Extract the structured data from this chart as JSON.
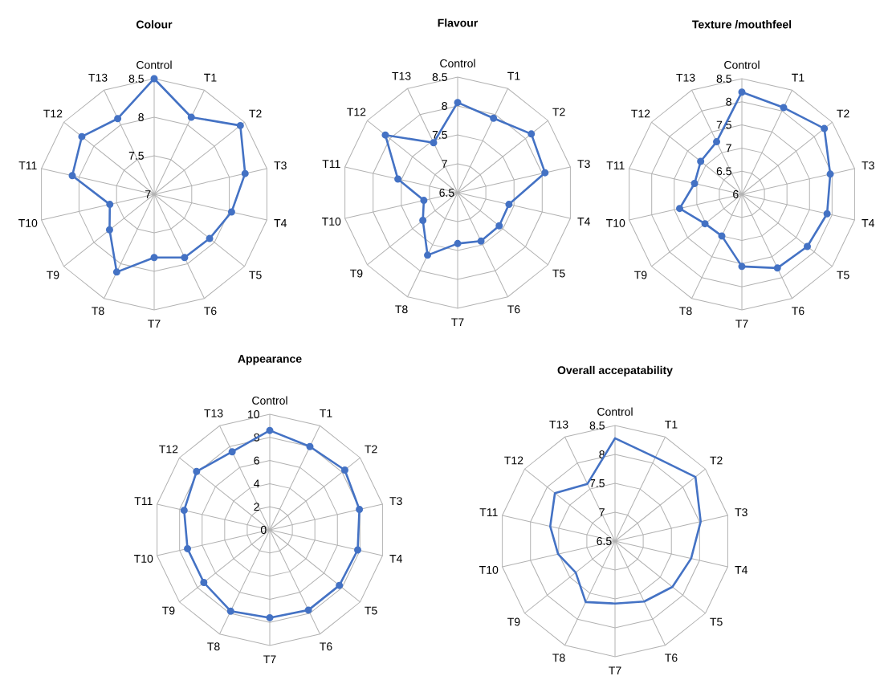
{
  "chart_data": [
    {
      "type": "radar",
      "title": "Colour",
      "categories": [
        "Control",
        "T1",
        "T2",
        "T3",
        "T4",
        "T5",
        "T6",
        "T7",
        "T8",
        "T9",
        "T10",
        "T11",
        "T12",
        "T13"
      ],
      "series": [
        {
          "color": "#4472c4",
          "values": [
            8.5,
            8.11,
            8.43,
            8.21,
            8.03,
            7.92,
            7.91,
            7.82,
            8.12,
            7.74,
            7.59,
            8.09,
            8.2,
            8.09
          ]
        }
      ],
      "ylim": [
        7,
        8.5
      ],
      "yticks": [
        7,
        7.5,
        8,
        8.5
      ],
      "marker": "circle",
      "grid": true
    },
    {
      "type": "radar",
      "title": "Flavour",
      "categories": [
        "Control",
        "T1",
        "T2",
        "T3",
        "T4",
        "T5",
        "T6",
        "T7",
        "T8",
        "T9",
        "T10",
        "T11",
        "T12",
        "T13"
      ],
      "series": [
        {
          "color": "#4472c4",
          "values": [
            8.06,
            7.93,
            8.13,
            8.05,
            7.41,
            7.42,
            7.43,
            7.38,
            7.7,
            7.27,
            7.1,
            7.56,
            8.1,
            7.46
          ]
        }
      ],
      "ylim": [
        6.5,
        8.5
      ],
      "yticks": [
        6.5,
        7,
        7.5,
        8,
        8.5
      ],
      "marker": "circle",
      "grid": true
    },
    {
      "type": "radar",
      "title": "Texture /mouthfeel",
      "categories": [
        "Control",
        "T1",
        "T2",
        "T3",
        "T4",
        "T5",
        "T6",
        "T7",
        "T8",
        "T9",
        "T10",
        "T11",
        "T12",
        "T13"
      ],
      "series": [
        {
          "color": "#4472c4",
          "values": [
            8.21,
            8.08,
            8.28,
            7.96,
            7.89,
            7.81,
            7.77,
            7.56,
            7.0,
            7.02,
            7.38,
            7.05,
            7.14,
            7.26
          ]
        }
      ],
      "ylim": [
        6,
        8.5
      ],
      "yticks": [
        6,
        6.5,
        7,
        7.5,
        8,
        8.5
      ],
      "marker": "circle",
      "grid": true
    },
    {
      "type": "radar",
      "title": "Appearance",
      "categories": [
        "Control",
        "T1",
        "T2",
        "T3",
        "T4",
        "T5",
        "T6",
        "T7",
        "T8",
        "T9",
        "T10",
        "T11",
        "T12",
        "T13"
      ],
      "series": [
        {
          "color": "#4472c4",
          "values": [
            8.6,
            8.0,
            8.3,
            7.95,
            7.8,
            7.7,
            7.7,
            7.6,
            7.8,
            7.3,
            7.3,
            7.6,
            8.1,
            7.5
          ]
        }
      ],
      "ylim": [
        0,
        10
      ],
      "yticks": [
        0,
        2,
        4,
        6,
        8,
        10
      ],
      "marker": "circle",
      "grid": true
    },
    {
      "type": "radar",
      "title": "Overall accepatability",
      "categories": [
        "Control",
        "T1",
        "T2",
        "T3",
        "T4",
        "T5",
        "T6",
        "T7",
        "T8",
        "T9",
        "T10",
        "T11",
        "T12",
        "T13"
      ],
      "series": [
        {
          "color": "#4472c4",
          "values": [
            8.28,
            8.11,
            8.28,
            8.02,
            7.85,
            7.77,
            7.66,
            7.58,
            7.67,
            7.37,
            7.51,
            7.65,
            7.83,
            7.6
          ]
        }
      ],
      "ylim": [
        6.5,
        8.5
      ],
      "yticks": [
        6.5,
        7,
        7.5,
        8,
        8.5
      ],
      "marker": "none",
      "grid": true
    }
  ]
}
